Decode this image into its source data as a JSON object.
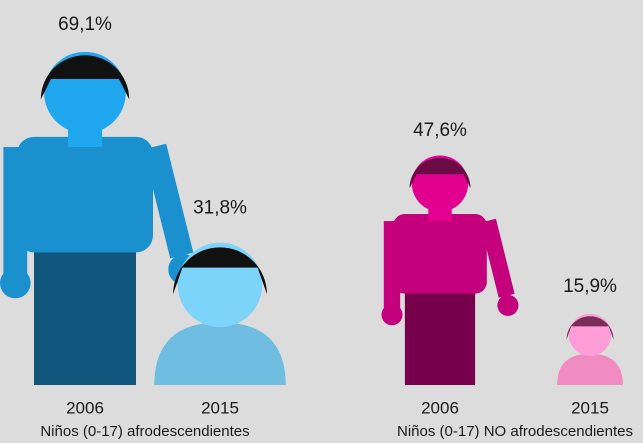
{
  "chart_data": [
    {
      "type": "pictogram",
      "title": "Niños (0-17) afrodescendientes",
      "categories": [
        "2006",
        "2015"
      ],
      "values": [
        69.1,
        31.8
      ],
      "value_labels": [
        "69,1%",
        "31,8%"
      ],
      "colors": [
        "#1a90cf",
        "#6fbde0"
      ],
      "hair_colors": [
        "#111111",
        "#111111"
      ]
    },
    {
      "type": "pictogram",
      "title": "Niños (0-17) NO afrodescendientes",
      "categories": [
        "2006",
        "2015"
      ],
      "values": [
        47.6,
        15.9
      ],
      "value_labels": [
        "47,6%",
        "15,9%"
      ],
      "colors": [
        "#c4007d",
        "#f08cc2"
      ],
      "hair_colors": [
        "#6a0b45",
        "#7a2d58"
      ]
    }
  ]
}
